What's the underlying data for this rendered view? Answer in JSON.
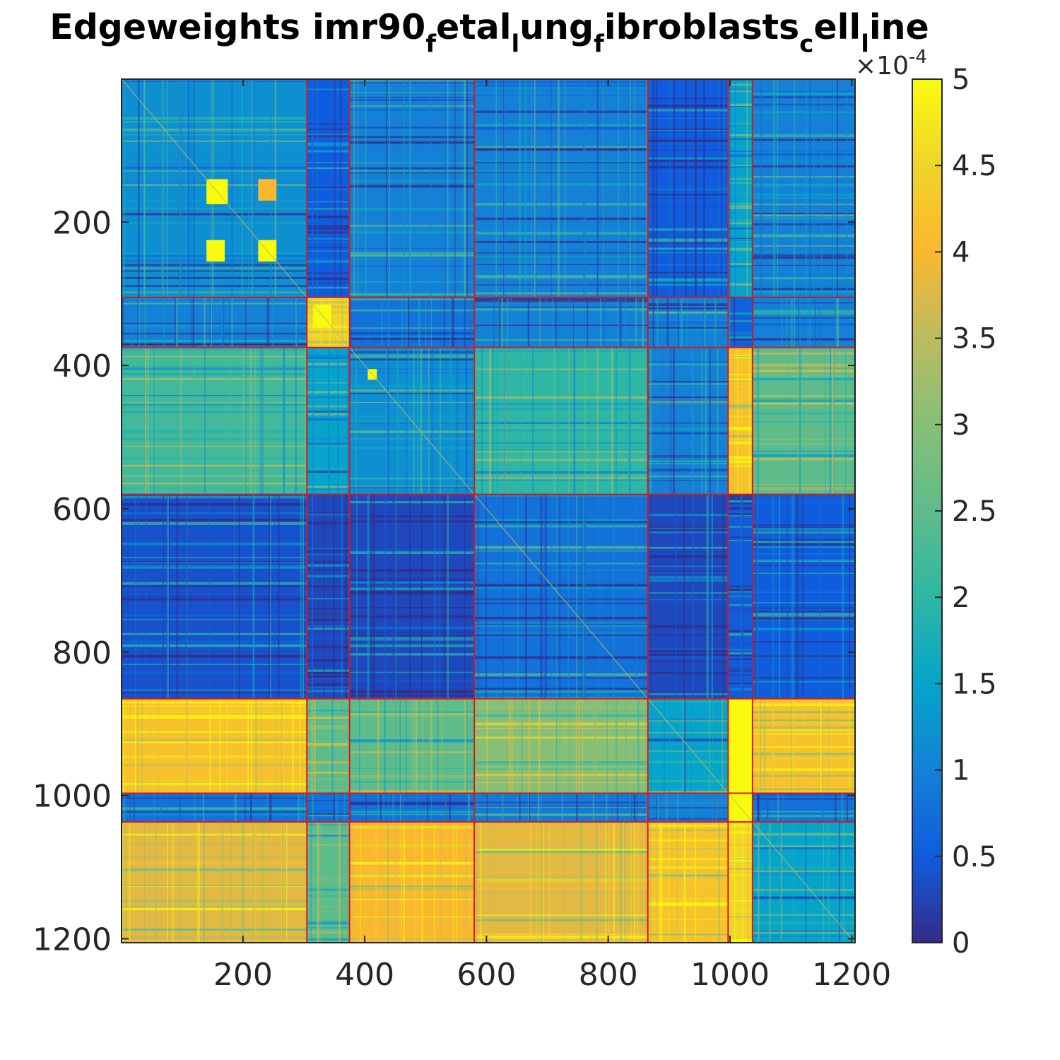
{
  "chart_data": {
    "type": "heatmap",
    "title": "Edgeweights imr90fetallungfibroblastscellline",
    "title_parts": [
      {
        "text": "Edgeweights imr90",
        "sub": false
      },
      {
        "text": "f",
        "sub": true
      },
      {
        "text": "etal",
        "sub": false
      },
      {
        "text": "l",
        "sub": true
      },
      {
        "text": "ung",
        "sub": false
      },
      {
        "text": "f",
        "sub": true
      },
      {
        "text": "ibroblasts",
        "sub": false
      },
      {
        "text": "c",
        "sub": true
      },
      {
        "text": "ell",
        "sub": false
      },
      {
        "text": "l",
        "sub": true
      },
      {
        "text": "ine",
        "sub": false
      }
    ],
    "xlabel": "",
    "ylabel": "",
    "xlim": [
      1,
      1205
    ],
    "ylim": [
      1,
      1205
    ],
    "y_reversed": true,
    "x_ticks": [
      200,
      400,
      600,
      800,
      1000,
      1200
    ],
    "y_ticks": [
      200,
      400,
      600,
      800,
      1000,
      1200
    ],
    "colorbar": {
      "colormap": "parula",
      "range": [
        0,
        5
      ],
      "ticks": [
        "0",
        "0.5",
        "1",
        "1.5",
        "2",
        "2.5",
        "3",
        "3.5",
        "4",
        "4.5",
        "5"
      ],
      "exponent_label": "×10",
      "exponent_power": "-4"
    },
    "cluster_boundaries": [
      305,
      375,
      580,
      865,
      997,
      1037
    ],
    "block_values": [
      [
        1.2,
        0.5,
        1.0,
        1.0,
        0.5,
        1.5,
        1.0
      ],
      [
        1.0,
        4.5,
        0.8,
        1.0,
        1.0,
        0.6,
        1.0
      ],
      [
        2.2,
        1.5,
        1.2,
        2.0,
        1.0,
        4.2,
        2.5
      ],
      [
        0.4,
        0.3,
        0.3,
        0.8,
        0.3,
        0.5,
        0.5
      ],
      [
        4.2,
        2.5,
        2.5,
        3.0,
        1.5,
        4.9,
        4.2
      ],
      [
        0.8,
        0.8,
        0.8,
        0.9,
        1.0,
        4.8,
        0.8
      ],
      [
        3.8,
        2.5,
        4.0,
        3.8,
        4.2,
        4.5,
        1.5
      ]
    ],
    "highlight_blocks": [
      {
        "x": [
          140,
          175
        ],
        "y": [
          140,
          175
        ],
        "value": 5.0
      },
      {
        "x": [
          225,
          255
        ],
        "y": [
          225,
          255
        ],
        "value": 5.0
      },
      {
        "x": [
          225,
          255
        ],
        "y": [
          140,
          170
        ],
        "value": 4.0
      },
      {
        "x": [
          140,
          170
        ],
        "y": [
          225,
          255
        ],
        "value": 5.0
      },
      {
        "x": [
          315,
          345
        ],
        "y": [
          315,
          345
        ],
        "value": 5.0
      },
      {
        "x": [
          405,
          420
        ],
        "y": [
          405,
          420
        ],
        "value": 5.0
      },
      {
        "x": [
          1000,
          1037
        ],
        "y": [
          865,
          997
        ],
        "value": 5.0
      },
      {
        "x": [
          997,
          1037
        ],
        "y": [
          997,
          1037
        ],
        "value": 5.0
      }
    ],
    "boundary_color": "#d7191c"
  }
}
